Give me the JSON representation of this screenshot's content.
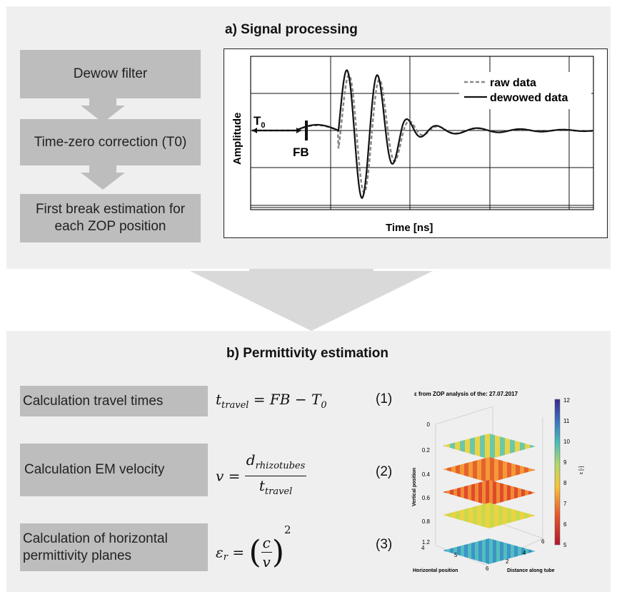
{
  "panel_a": {
    "title": "a) Signal processing",
    "steps": [
      "Dewow filter",
      "Time-zero correction (T0)",
      "First break estimation for each ZOP position"
    ]
  },
  "chart": {
    "legend": [
      "raw data",
      "dewowed data"
    ],
    "xlabel": "Time [ns]",
    "ylabel": "Amplitude",
    "t0_label": "T",
    "t0_sub": "0",
    "fb_label": "FB"
  },
  "panel_b": {
    "title": "b) Permittivity estimation",
    "steps": [
      "Calculation travel times",
      "Calculation EM velocity",
      "Calculation of horizontal permittivity planes"
    ],
    "equations": {
      "eq1": {
        "lhs": "t",
        "lhs_sub": "travel",
        "rhs": "= FB − T",
        "rhs_sub": "0",
        "num": "(1)"
      },
      "eq2": {
        "lhs": "v =",
        "numer": "d",
        "numer_sub": "rhizotubes",
        "denom": "t",
        "denom_sub": "travel",
        "num": "(2)"
      },
      "eq3": {
        "lhs": "ε",
        "lhs_sub": "r",
        "eqsign": "=",
        "numer": "c",
        "denom": "v",
        "exp": "2",
        "num": "(3)"
      }
    }
  },
  "plot3d": {
    "title": "ε  from ZOP analysis of the: 27.07.2017",
    "title_sub": "r",
    "ylabel": "Vertical position",
    "xlabel": "Horizontal position",
    "zlabel": "Distance along tube",
    "colorbar_label": "ε [-]",
    "colorbar_ticks": [
      "12",
      "11",
      "10",
      "9",
      "8",
      "7",
      "6",
      "5"
    ],
    "vert_ticks": [
      "0",
      "0.2",
      "0.4",
      "0.6",
      "0.8",
      "1.2"
    ],
    "horiz_ticks": [
      "4",
      "5",
      "6"
    ],
    "dist_ticks": [
      "2",
      "4",
      "6"
    ]
  },
  "colors": {
    "panel_bg": "#efefef",
    "step_bg": "#bdbdbd",
    "arrow": "#c4c4c4",
    "raw_line": "#888888",
    "dewow_line": "#111111"
  }
}
